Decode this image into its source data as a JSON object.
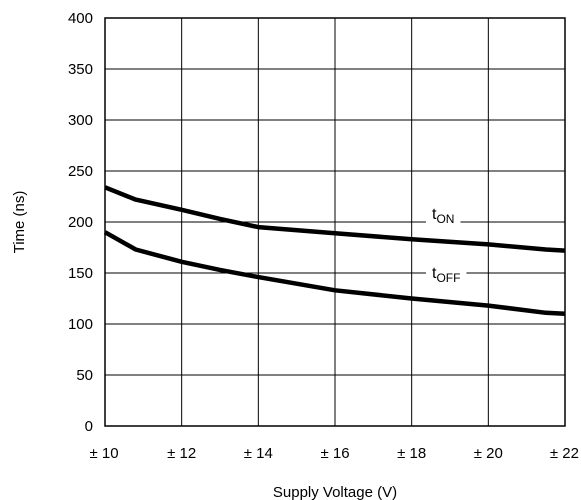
{
  "chart_data": {
    "type": "line",
    "xlabel": "Supply Voltage (V)",
    "ylabel": "Time (ns)",
    "xlim": [
      10,
      22
    ],
    "ylim": [
      0,
      400
    ],
    "grid": true,
    "x_ticks": [
      10,
      12,
      14,
      16,
      18,
      20,
      22
    ],
    "x_tick_labels": [
      "± 10",
      "± 12",
      "± 14",
      "± 16",
      "± 18",
      "± 20",
      "± 22"
    ],
    "y_ticks": [
      0,
      50,
      100,
      150,
      200,
      250,
      300,
      350,
      400
    ],
    "y_tick_labels": [
      "0",
      "50",
      "100",
      "150",
      "200",
      "250",
      "300",
      "350",
      "400"
    ],
    "series": [
      {
        "name": "tON",
        "label_main": "t",
        "label_sub": "ON",
        "x": [
          10,
          10.8,
          12,
          13,
          14,
          16,
          18,
          20,
          21.5,
          22
        ],
        "y": [
          234,
          222,
          212,
          203,
          195,
          189,
          183,
          178,
          173,
          172
        ]
      },
      {
        "name": "tOFF",
        "label_main": "t",
        "label_sub": "OFF",
        "x": [
          10,
          10.8,
          12,
          13,
          14,
          16,
          18,
          20,
          21.5,
          22
        ],
        "y": [
          190,
          173,
          161,
          153,
          146,
          133,
          125,
          118,
          111,
          110
        ]
      }
    ]
  }
}
